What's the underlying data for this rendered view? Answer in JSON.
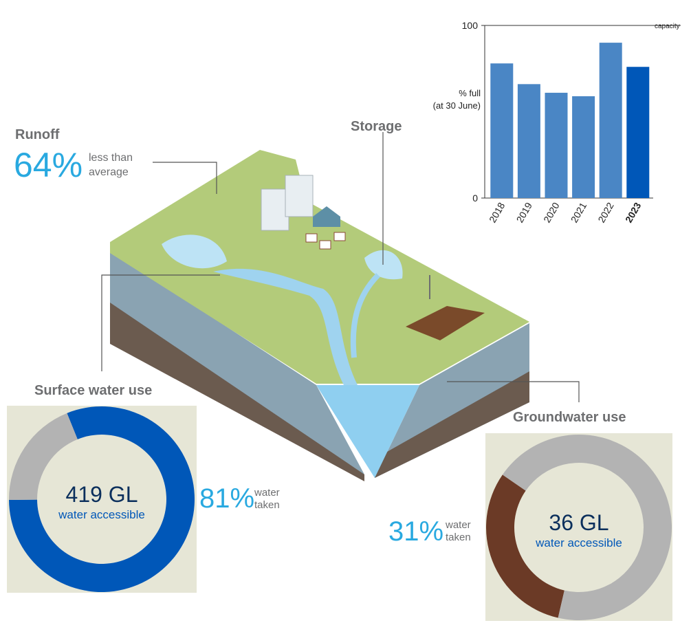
{
  "labels": {
    "runoff": {
      "title": "Runoff",
      "value_label": "64%",
      "text": [
        "less than",
        "average"
      ]
    },
    "storage": "Storage"
  },
  "chart_data": [
    {
      "type": "bar",
      "categories": [
        "2018",
        "2019",
        "2020",
        "2021",
        "2022",
        "2023"
      ],
      "values": [
        78,
        66,
        61,
        59,
        90,
        76
      ],
      "colors": [
        "#4a86c5",
        "#4a86c5",
        "#4a86c5",
        "#4a86c5",
        "#4a86c5",
        "#0057b8"
      ],
      "highlight": "2023",
      "ylabel": [
        "% full",
        "(at 30 June)"
      ],
      "ylim": [
        0,
        100
      ],
      "yticks": [
        0,
        100
      ],
      "annotation": "capacity"
    },
    {
      "type": "pie",
      "title": "Surface water use",
      "center": [
        "419 GL",
        "water accessible"
      ],
      "values": [
        81,
        19
      ],
      "value_labels": [
        "81%",
        null
      ],
      "colors": [
        "#0057b8",
        "#b3b3b3"
      ],
      "label": [
        "water",
        "taken"
      ]
    },
    {
      "type": "pie",
      "title": "Groundwater use",
      "center": [
        "36 GL",
        "water accessible"
      ],
      "values": [
        31,
        69
      ],
      "value_labels": [
        "31%",
        null
      ],
      "colors": [
        "#6b3a26",
        "#b3b3b3"
      ],
      "label": [
        "water",
        "taken"
      ]
    }
  ]
}
